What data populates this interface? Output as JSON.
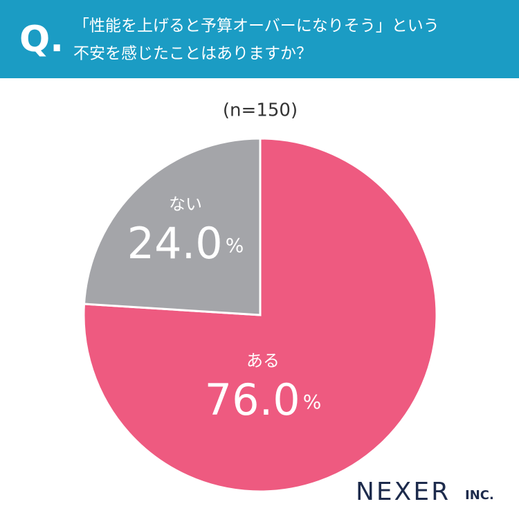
{
  "chart_data": {
    "type": "pie",
    "question_label": "Q.",
    "title": [
      "「性能を上げると予算オーバーになりそう」という",
      "不安を感じたことはありますか？"
    ],
    "subtitle": "(n=150)",
    "categories": [
      "ある",
      "ない"
    ],
    "values": [
      76.0,
      24.0
    ],
    "value_labels": [
      "76.0%",
      "24.0%"
    ],
    "colors": [
      "#ee5a80",
      "#a4a5a9"
    ],
    "brand": "NEXER",
    "brand_suffix": "INC."
  }
}
